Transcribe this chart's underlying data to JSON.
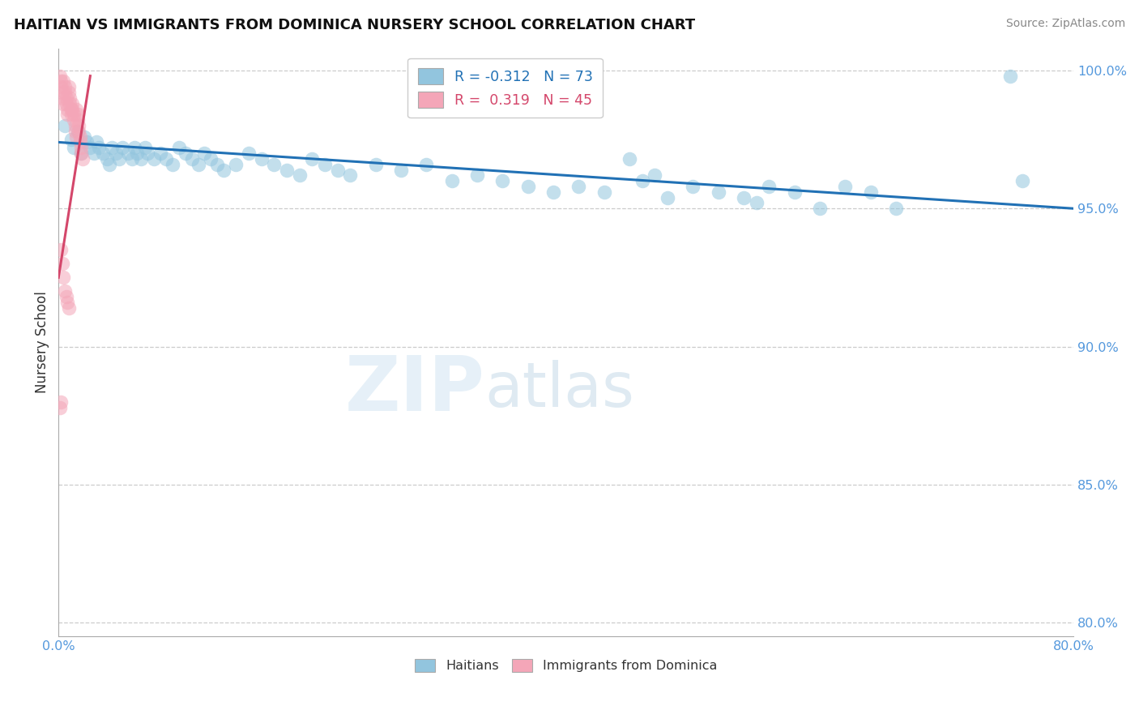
{
  "title": "HAITIAN VS IMMIGRANTS FROM DOMINICA NURSERY SCHOOL CORRELATION CHART",
  "source": "Source: ZipAtlas.com",
  "ylabel": "Nursery School",
  "xlim": [
    0.0,
    0.8
  ],
  "ylim": [
    0.795,
    1.008
  ],
  "xticks": [
    0.0,
    0.1,
    0.2,
    0.3,
    0.4,
    0.5,
    0.6,
    0.7,
    0.8
  ],
  "xticklabels": [
    "0.0%",
    "",
    "",
    "",
    "",
    "",
    "",
    "",
    "80.0%"
  ],
  "yticks": [
    0.8,
    0.85,
    0.9,
    0.95,
    1.0
  ],
  "yticklabels": [
    "80.0%",
    "85.0%",
    "90.0%",
    "95.0%",
    "100.0%"
  ],
  "legend_r1": "R = -0.312",
  "legend_n1": "N = 73",
  "legend_r2": "R =  0.319",
  "legend_n2": "N = 45",
  "blue_color": "#92c5de",
  "pink_color": "#f4a6b8",
  "trend_blue": "#2171b5",
  "trend_pink": "#d4476b",
  "tick_color": "#5599dd",
  "watermark_zip": "ZIP",
  "watermark_atlas": "atlas",
  "blue_scatter_x": [
    0.005,
    0.01,
    0.012,
    0.015,
    0.018,
    0.02,
    0.022,
    0.025,
    0.028,
    0.03,
    0.032,
    0.035,
    0.038,
    0.04,
    0.042,
    0.045,
    0.048,
    0.05,
    0.055,
    0.058,
    0.06,
    0.062,
    0.065,
    0.068,
    0.07,
    0.075,
    0.08,
    0.085,
    0.09,
    0.095,
    0.1,
    0.105,
    0.11,
    0.115,
    0.12,
    0.125,
    0.13,
    0.14,
    0.15,
    0.16,
    0.17,
    0.18,
    0.19,
    0.2,
    0.21,
    0.22,
    0.23,
    0.25,
    0.27,
    0.29,
    0.31,
    0.33,
    0.35,
    0.37,
    0.39,
    0.41,
    0.43,
    0.45,
    0.46,
    0.47,
    0.48,
    0.5,
    0.52,
    0.54,
    0.55,
    0.56,
    0.58,
    0.6,
    0.62,
    0.64,
    0.66,
    0.75,
    0.76
  ],
  "blue_scatter_y": [
    0.98,
    0.975,
    0.972,
    0.978,
    0.97,
    0.976,
    0.974,
    0.972,
    0.97,
    0.974,
    0.972,
    0.97,
    0.968,
    0.966,
    0.972,
    0.97,
    0.968,
    0.972,
    0.97,
    0.968,
    0.972,
    0.97,
    0.968,
    0.972,
    0.97,
    0.968,
    0.97,
    0.968,
    0.966,
    0.972,
    0.97,
    0.968,
    0.966,
    0.97,
    0.968,
    0.966,
    0.964,
    0.966,
    0.97,
    0.968,
    0.966,
    0.964,
    0.962,
    0.968,
    0.966,
    0.964,
    0.962,
    0.966,
    0.964,
    0.966,
    0.96,
    0.962,
    0.96,
    0.958,
    0.956,
    0.958,
    0.956,
    0.968,
    0.96,
    0.962,
    0.954,
    0.958,
    0.956,
    0.954,
    0.952,
    0.958,
    0.956,
    0.95,
    0.958,
    0.956,
    0.95,
    0.998,
    0.96
  ],
  "pink_scatter_x": [
    0.001,
    0.002,
    0.002,
    0.003,
    0.003,
    0.004,
    0.004,
    0.005,
    0.005,
    0.006,
    0.006,
    0.007,
    0.007,
    0.008,
    0.008,
    0.009,
    0.009,
    0.01,
    0.01,
    0.011,
    0.011,
    0.012,
    0.012,
    0.013,
    0.013,
    0.014,
    0.014,
    0.015,
    0.015,
    0.016,
    0.016,
    0.017,
    0.017,
    0.018,
    0.018,
    0.019,
    0.002,
    0.003,
    0.004,
    0.005,
    0.006,
    0.007,
    0.008,
    0.002,
    0.001
  ],
  "pink_scatter_y": [
    0.998,
    0.996,
    0.994,
    0.992,
    0.99,
    0.988,
    0.996,
    0.994,
    0.992,
    0.99,
    0.988,
    0.986,
    0.984,
    0.994,
    0.992,
    0.99,
    0.988,
    0.986,
    0.984,
    0.988,
    0.986,
    0.984,
    0.982,
    0.98,
    0.978,
    0.976,
    0.986,
    0.984,
    0.982,
    0.98,
    0.978,
    0.976,
    0.974,
    0.972,
    0.97,
    0.968,
    0.935,
    0.93,
    0.925,
    0.92,
    0.918,
    0.916,
    0.914,
    0.88,
    0.878
  ],
  "blue_trend_x": [
    0.0,
    0.8
  ],
  "blue_trend_y": [
    0.974,
    0.95
  ],
  "pink_trend_x": [
    0.0,
    0.025
  ],
  "pink_trend_y": [
    0.925,
    0.998
  ]
}
